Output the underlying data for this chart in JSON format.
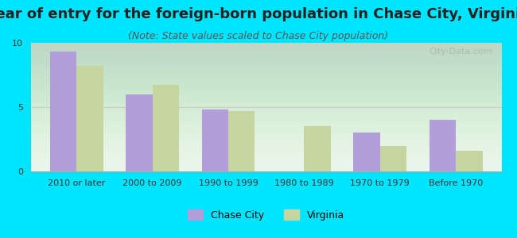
{
  "title": "Year of entry for the foreign-born population in Chase City, Virginia",
  "subtitle": "(Note: State values scaled to Chase City population)",
  "categories": [
    "2010 or later",
    "2000 to 2009",
    "1990 to 1999",
    "1980 to 1989",
    "1970 to 1979",
    "Before 1970"
  ],
  "chase_city": [
    9.3,
    6.0,
    4.8,
    0,
    3.0,
    4.0
  ],
  "virginia": [
    8.2,
    6.7,
    4.7,
    3.5,
    2.0,
    1.6
  ],
  "chase_city_color": "#b39ddb",
  "virginia_color": "#c5d5a0",
  "bar_width": 0.35,
  "ylim": [
    0,
    10
  ],
  "yticks": [
    0,
    5,
    10
  ],
  "background_color": "#00e5ff",
  "plot_bg_color": "#e8f5e9",
  "title_fontsize": 13,
  "subtitle_fontsize": 9,
  "tick_fontsize": 8,
  "legend_fontsize": 9,
  "watermark_text": "City-Data.com"
}
